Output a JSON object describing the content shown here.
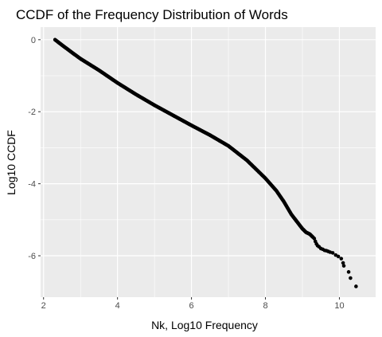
{
  "chart_data": {
    "type": "scatter",
    "title": "CCDF of the Frequency Distribution of Words",
    "xlabel": "Nk, Log10 Frequency",
    "ylabel": "Log10 CCDF",
    "xlim": [
      1.92,
      10.98
    ],
    "ylim": [
      -7.15,
      0.35
    ],
    "x_ticks": [
      2,
      4,
      6,
      8,
      10
    ],
    "y_ticks": [
      0,
      -2,
      -4,
      -6
    ],
    "x_tick_labels": [
      "2",
      "4",
      "6",
      "8",
      "10"
    ],
    "y_tick_labels": [
      "0",
      "-2",
      "-4",
      "-6"
    ],
    "grid": true,
    "background": "#ebebeb",
    "grid_color": "#ffffff",
    "point_color": "#000000",
    "curve": [
      [
        2.31,
        0.0
      ],
      [
        2.5,
        -0.15
      ],
      [
        2.8,
        -0.38
      ],
      [
        3.0,
        -0.53
      ],
      [
        3.5,
        -0.85
      ],
      [
        4.0,
        -1.2
      ],
      [
        4.5,
        -1.52
      ],
      [
        5.0,
        -1.82
      ],
      [
        5.5,
        -2.1
      ],
      [
        6.0,
        -2.38
      ],
      [
        6.5,
        -2.65
      ],
      [
        7.0,
        -2.95
      ],
      [
        7.5,
        -3.35
      ],
      [
        8.0,
        -3.85
      ],
      [
        8.3,
        -4.2
      ],
      [
        8.5,
        -4.5
      ],
      [
        8.7,
        -4.85
      ],
      [
        8.85,
        -5.05
      ],
      [
        9.0,
        -5.25
      ],
      [
        9.1,
        -5.35
      ],
      [
        9.2,
        -5.4
      ],
      [
        9.3,
        -5.5
      ]
    ],
    "tail_points": [
      [
        9.32,
        -5.52
      ],
      [
        9.35,
        -5.6
      ],
      [
        9.38,
        -5.67
      ],
      [
        9.41,
        -5.72
      ],
      [
        9.45,
        -5.75
      ],
      [
        9.5,
        -5.8
      ],
      [
        9.55,
        -5.82
      ],
      [
        9.6,
        -5.85
      ],
      [
        9.65,
        -5.86
      ],
      [
        9.7,
        -5.88
      ],
      [
        9.75,
        -5.9
      ],
      [
        9.82,
        -5.92
      ],
      [
        9.9,
        -5.98
      ],
      [
        9.97,
        -6.02
      ],
      [
        10.05,
        -6.08
      ],
      [
        10.1,
        -6.2
      ],
      [
        10.12,
        -6.28
      ],
      [
        10.25,
        -6.45
      ],
      [
        10.3,
        -6.62
      ],
      [
        10.45,
        -6.85
      ]
    ]
  }
}
